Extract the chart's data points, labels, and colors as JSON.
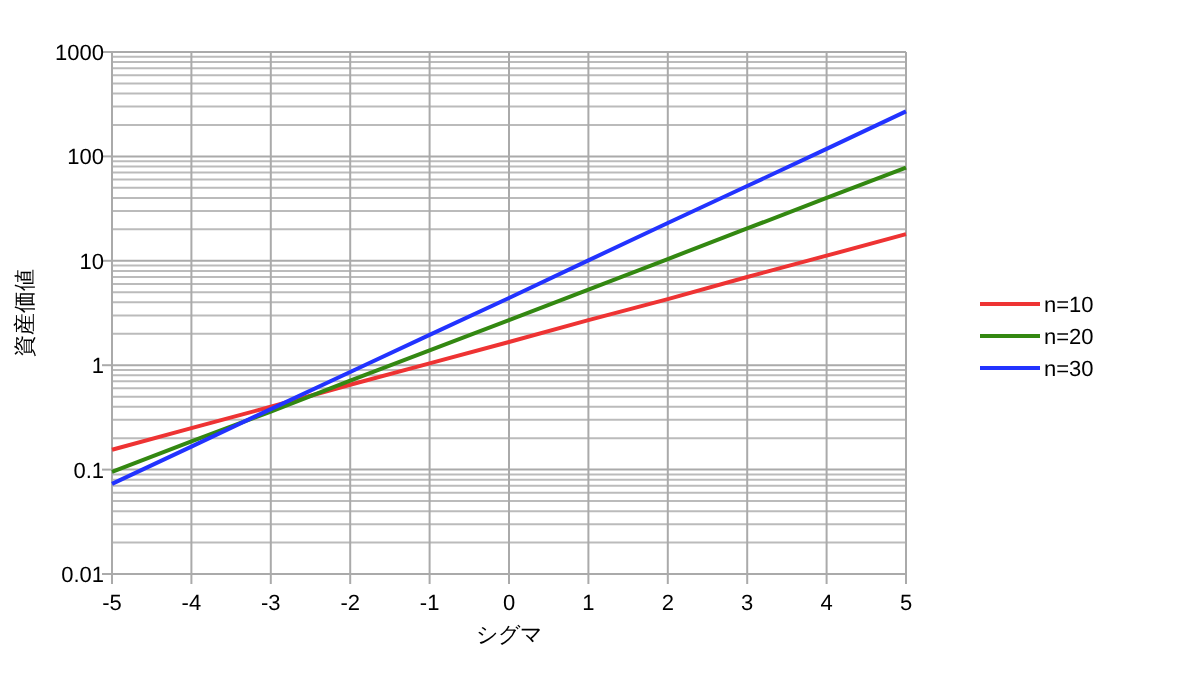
{
  "chart_data": {
    "type": "line",
    "xlabel": "シグマ",
    "ylabel": "資産価値",
    "log": "y",
    "grid": true,
    "legend": "right",
    "line_style": "solid",
    "x": [
      -5,
      -4,
      -3,
      -2,
      -1,
      0,
      1,
      2,
      3,
      4,
      5
    ],
    "xlim": [
      -5,
      5
    ],
    "xticks": [
      -5,
      -4,
      -3,
      -2,
      -1,
      0,
      1,
      2,
      3,
      4,
      5
    ],
    "ylim": [
      0.01,
      1000
    ],
    "yticks": [
      0.01,
      0.1,
      1,
      10,
      100,
      1000
    ],
    "series": [
      {
        "name": "n=10",
        "color": "#ee3333",
        "values": [
          0.155,
          0.25,
          0.4,
          0.65,
          1.04,
          1.67,
          2.7,
          4.3,
          7,
          11.2,
          18
        ]
      },
      {
        "name": "n=20",
        "color": "#338811",
        "values": [
          0.095,
          0.186,
          0.36,
          0.71,
          1.39,
          2.7,
          5.3,
          10.4,
          20.4,
          40,
          78
        ]
      },
      {
        "name": "n=30",
        "color": "#2233ff",
        "values": [
          0.073,
          0.166,
          0.38,
          0.86,
          1.95,
          4.4,
          10.1,
          23,
          52,
          118,
          270
        ]
      }
    ]
  }
}
